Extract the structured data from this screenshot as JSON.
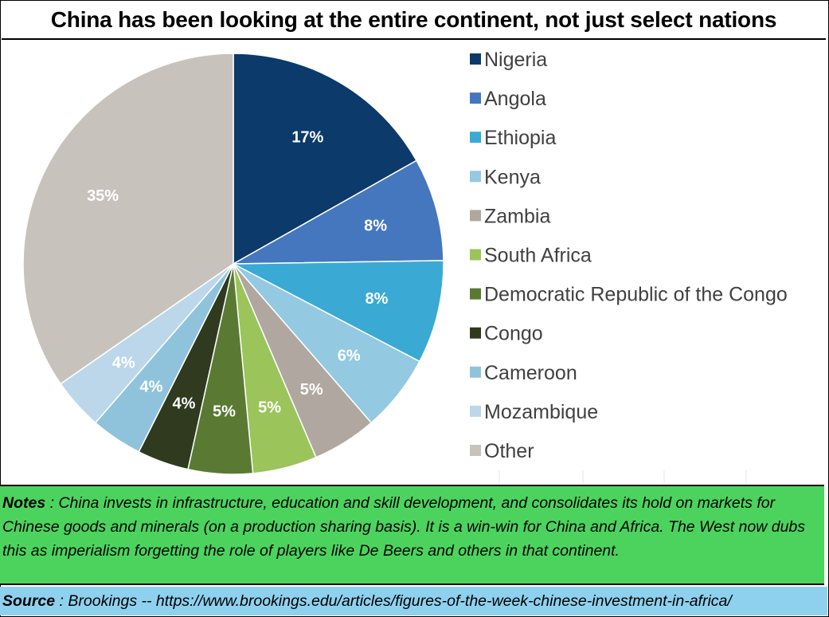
{
  "title": "China has been looking at the entire continent, not just select nations",
  "notes": {
    "label": "Notes",
    "separator": " : ",
    "text": "China invests in infrastructure, education and skill development, and consolidates its hold on markets for Chinese goods and minerals  (on a production sharing basis). It is a win-win for China and Africa. The West now dubs this as imperialism forgetting the role of players like De Beers and others in that continent."
  },
  "source": {
    "label": "Source",
    "separator": " : ",
    "text": "Brookings -- https://www.brookings.edu/articles/figures-of-the-week-chinese-investment-in-africa/"
  },
  "chart_data": {
    "type": "pie",
    "title": "",
    "legend_position": "right",
    "categories": [
      "Nigeria",
      "Angola",
      "Ethiopia",
      "Kenya",
      "Zambia",
      "South Africa",
      "Democratic Republic of the Congo",
      "Congo",
      "Cameroon",
      "Mozambique",
      "Other"
    ],
    "values": [
      17,
      8,
      8,
      6,
      5,
      5,
      5,
      4,
      4,
      4,
      35
    ],
    "labels": [
      "17%",
      "8%",
      "8%",
      "6%",
      "5%",
      "5%",
      "5%",
      "4%",
      "4%",
      "4%",
      "35%"
    ],
    "colors": [
      "#0b3a6b",
      "#4577be",
      "#3aaad4",
      "#94c9e2",
      "#b0a8a0",
      "#9bc45a",
      "#5a7a34",
      "#2f3a1e",
      "#8fc3dc",
      "#bcd7ea",
      "#c8c2bc"
    ],
    "start_angle_deg": 0,
    "direction": "clockwise"
  }
}
